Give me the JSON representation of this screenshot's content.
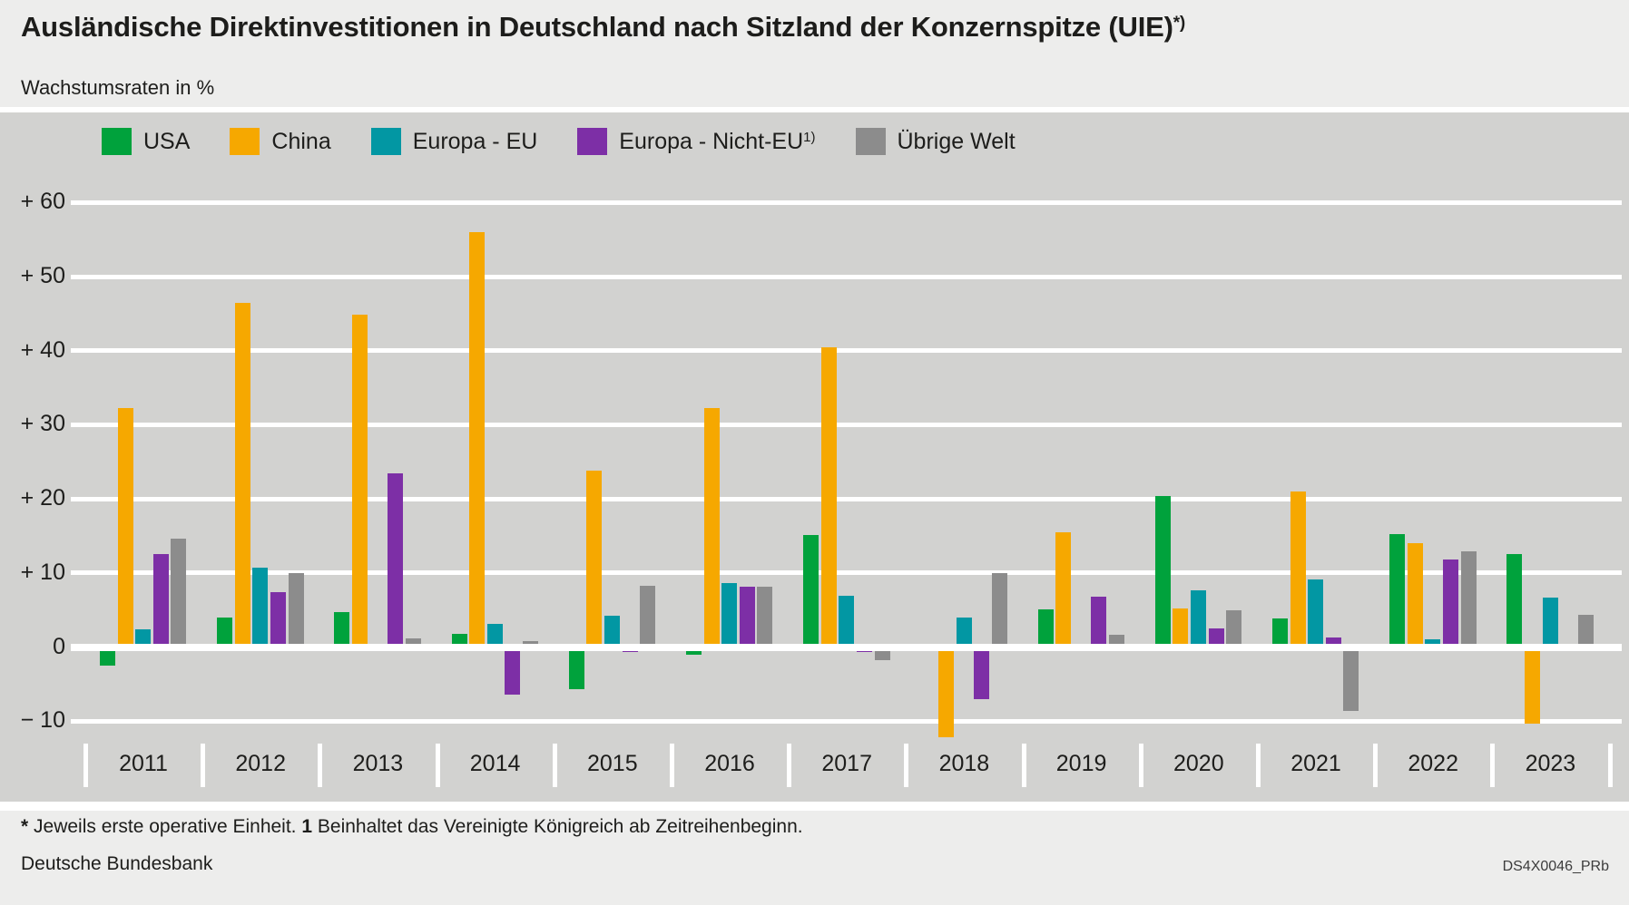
{
  "header": {
    "title": "Ausländische Direktinvestitionen in Deutschland nach Sitzland der Konzernspitze (UIE)",
    "title_sup": "*)",
    "subtitle": "Wachstumsraten in %"
  },
  "footer": {
    "footnote": {
      "marker_star": "*",
      "part1": "Jeweils erste operative Einheit.",
      "marker_one": "1",
      "part2": "Beinhaltet das Vereinigte Königreich ab Zeitreihenbeginn."
    },
    "source": "Deutsche Bundesbank",
    "chart_code": "DS4X0046_PRb"
  },
  "colors": {
    "page_bg": "#ededec",
    "plot_bg": "#d2d2d0",
    "grid": "#ffffff",
    "text": "#1d1d1b"
  },
  "chart_data": {
    "type": "bar",
    "title": "Ausländische Direktinvestitionen in Deutschland nach Sitzland der Konzernspitze (UIE)*)",
    "subtitle": "Wachstumsraten in %",
    "unit": "%",
    "grid": true,
    "legend_position": "top",
    "ylim": [
      -15,
      65
    ],
    "categories": [
      "2011",
      "2012",
      "2013",
      "2014",
      "2015",
      "2016",
      "2017",
      "2018",
      "2019",
      "2020",
      "2021",
      "2022",
      "2023"
    ],
    "yticks": [
      {
        "value": 60,
        "label": "+ 60"
      },
      {
        "value": 50,
        "label": "+ 50"
      },
      {
        "value": 40,
        "label": "+ 40"
      },
      {
        "value": 30,
        "label": "+ 30"
      },
      {
        "value": 20,
        "label": "+ 20"
      },
      {
        "value": 10,
        "label": "+ 10"
      },
      {
        "value": 0,
        "label": "0"
      },
      {
        "value": -10,
        "label": "− 10"
      }
    ],
    "series": [
      {
        "name": "USA",
        "sup": "",
        "color": "#00a23c",
        "values": [
          -2.5,
          4.0,
          4.7,
          1.8,
          -5.7,
          -1.1,
          15.1,
          -0.6,
          5.1,
          20.4,
          3.9,
          15.2,
          12.6
        ]
      },
      {
        "name": "China",
        "sup": "",
        "color": "#f6a800",
        "values": [
          32.3,
          46.4,
          44.9,
          56.0,
          23.8,
          32.3,
          40.5,
          -12.2,
          15.5,
          5.2,
          21.0,
          14.0,
          -10.3
        ]
      },
      {
        "name": "Europa - EU",
        "sup": "",
        "color": "#0297a3",
        "values": [
          2.4,
          10.7,
          -0.5,
          3.1,
          4.2,
          8.6,
          6.9,
          4.0,
          0,
          7.7,
          9.1,
          1.0,
          6.7
        ]
      },
      {
        "name": "Europa - Nicht-EU",
        "sup": "1)",
        "color": "#7d2fa6",
        "values": [
          12.5,
          7.4,
          23.5,
          -6.4,
          -0.7,
          8.1,
          -0.7,
          -7.0,
          6.8,
          2.5,
          1.3,
          11.8,
          0
        ]
      },
      {
        "name": "Übrige Welt",
        "sup": "",
        "color": "#8c8c8c",
        "values": [
          14.6,
          10.0,
          1.2,
          0.8,
          8.3,
          8.1,
          -1.8,
          10.0,
          1.7,
          5.0,
          -8.6,
          12.9,
          4.4
        ]
      }
    ]
  }
}
